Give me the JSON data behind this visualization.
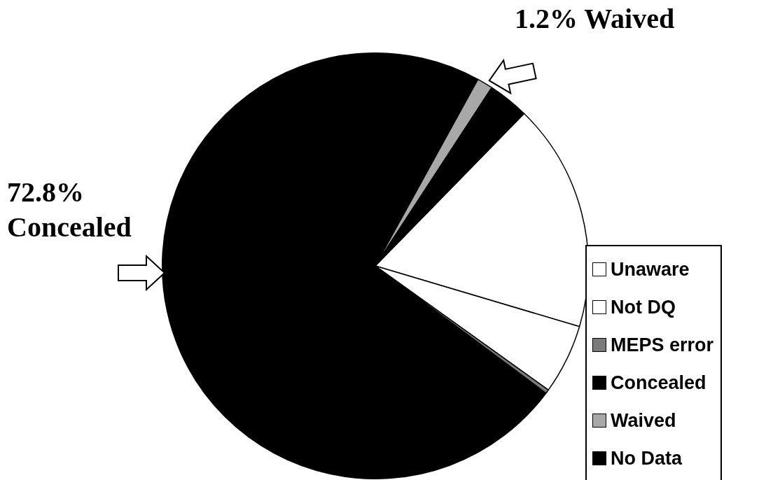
{
  "chart_data": {
    "type": "pie",
    "categories": [
      "Unaware",
      "Not DQ",
      "MEPS error",
      "Concealed",
      "Waived",
      "No Data"
    ],
    "values": [
      17.3,
      5.3,
      0.3,
      72.8,
      1.2,
      3.1
    ],
    "colors": [
      "#ffffff",
      "#ffffff",
      "#7a7a7a",
      "#000000",
      "#a8a8a8",
      "#000000"
    ],
    "legend": "right",
    "annotations": [
      "1.2% Waived",
      "72.8% Concealed"
    ]
  }
}
